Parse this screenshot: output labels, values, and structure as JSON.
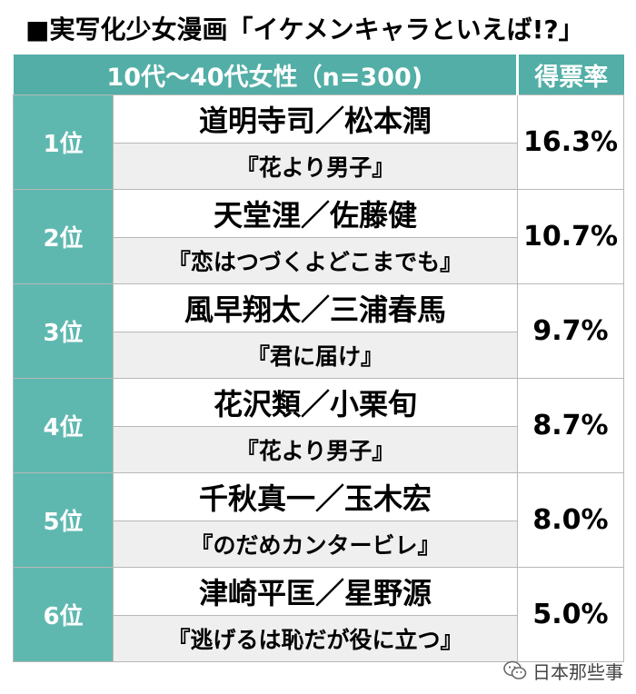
{
  "title": "■実写化少女漫画「イケメンキャラといえば!?」",
  "header": {
    "group": "10代〜40代女性（n=300)",
    "share": "得票率"
  },
  "watermark": "日本那些事",
  "chart_data": {
    "type": "table",
    "title": "■実写化少女漫画「イケメンキャラといえば!?」",
    "columns": [
      "10代〜40代女性（n=300)",
      "得票率"
    ],
    "rows": [
      {
        "rank": "1位",
        "name": "道明寺司／松本潤",
        "work": "『花より男子』",
        "share": "16.3%",
        "value": 16.3
      },
      {
        "rank": "2位",
        "name": "天堂浬／佐藤健",
        "work": "『恋はつづくよどこまでも』",
        "share": "10.7%",
        "value": 10.7
      },
      {
        "rank": "3位",
        "name": "風早翔太／三浦春馬",
        "work": "『君に届け』",
        "share": "9.7%",
        "value": 9.7
      },
      {
        "rank": "4位",
        "name": "花沢類／小栗旬",
        "work": "『花より男子』",
        "share": "8.7%",
        "value": 8.7
      },
      {
        "rank": "5位",
        "name": "千秋真一／玉木宏",
        "work": "『のだめカンタービレ』",
        "share": "8.0%",
        "value": 8.0
      },
      {
        "rank": "6位",
        "name": "津崎平匡／星野源",
        "work": "『逃げるは恥だが役に立つ』",
        "share": "5.0%",
        "value": 5.0
      }
    ]
  }
}
